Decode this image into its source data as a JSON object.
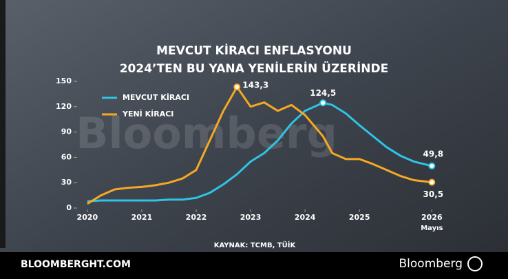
{
  "chart_data": {
    "type": "line",
    "title": "MEVCUT KİRACI ENFLASYONU",
    "subtitle": "2024’TEN BU YANA YENİLERİN ÜZERİNDE",
    "source": "KAYNAK: TCMB, TÜİK",
    "x_note": "Mayıs",
    "watermark": "Bloomberg",
    "footer": {
      "site": "BLOOMBERGHT.COM",
      "brand": "Bloomberg"
    },
    "x": [
      2020,
      2020.25,
      2020.5,
      2020.75,
      2021,
      2021.25,
      2021.5,
      2021.75,
      2022,
      2022.25,
      2022.5,
      2022.75,
      2023,
      2023.25,
      2023.5,
      2023.75,
      2024,
      2024.33,
      2024.5,
      2024.75,
      2025,
      2025.25,
      2025.5,
      2025.75,
      2026,
      2026.33
    ],
    "xlim": [
      2019.85,
      2026.49
    ],
    "xticks": [
      {
        "value": 2020,
        "label": "2020"
      },
      {
        "value": 2021,
        "label": "2021"
      },
      {
        "value": 2022,
        "label": "2022"
      },
      {
        "value": 2023,
        "label": "2023"
      },
      {
        "value": 2024,
        "label": "2024"
      },
      {
        "value": 2025,
        "label": "2025"
      },
      {
        "value": 2026.33,
        "label": "2026"
      }
    ],
    "ylim": [
      0,
      150
    ],
    "yticks": [
      0,
      30,
      60,
      90,
      120,
      150
    ],
    "legend": "top-left",
    "series": [
      {
        "name": "MEVCUT KİRACI",
        "color": "#2ec4e6",
        "values": [
          8,
          9,
          9,
          9,
          9,
          9,
          10,
          10,
          12,
          18,
          28,
          40,
          55,
          65,
          80,
          100,
          115,
          124.5,
          122,
          112,
          98,
          85,
          72,
          62,
          55,
          49.8
        ],
        "value_labels": [
          null,
          null,
          null,
          null,
          null,
          null,
          null,
          null,
          null,
          null,
          null,
          null,
          null,
          null,
          null,
          null,
          null,
          "124,5",
          null,
          null,
          null,
          null,
          null,
          null,
          null,
          "49,8"
        ]
      },
      {
        "name": "YENİ KİRACI",
        "color": "#f7a823",
        "values": [
          5,
          15,
          22,
          24,
          25,
          27,
          30,
          35,
          45,
          80,
          115,
          143.3,
          120,
          125,
          115,
          122,
          110,
          85,
          65,
          58,
          58,
          52,
          45,
          38,
          33,
          30.5
        ],
        "value_labels": [
          null,
          null,
          null,
          null,
          null,
          null,
          null,
          null,
          null,
          null,
          null,
          "143,3",
          null,
          null,
          null,
          null,
          null,
          null,
          null,
          null,
          null,
          null,
          null,
          null,
          null,
          "30,5"
        ]
      }
    ]
  }
}
